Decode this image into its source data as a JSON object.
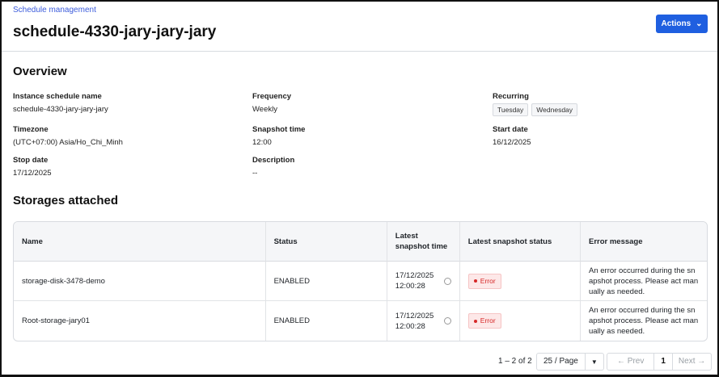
{
  "breadcrumb": "Schedule management",
  "title": "schedule-4330-jary-jary-jary",
  "actions_label": "Actions",
  "overview": {
    "heading": "Overview",
    "fields": [
      {
        "label": "Instance schedule name",
        "value": "schedule-4330-jary-jary-jary"
      },
      {
        "label": "Frequency",
        "value": "Weekly"
      },
      {
        "label": "Recurring",
        "tags": [
          "Tuesday",
          "Wednesday"
        ]
      },
      {
        "label": "Timezone",
        "value": "(UTC+07:00) Asia/Ho_Chi_Minh"
      },
      {
        "label": "Snapshot time",
        "value": "12:00"
      },
      {
        "label": "Start date",
        "value": "16/12/2025"
      },
      {
        "label": "Stop date",
        "value": "17/12/2025"
      },
      {
        "label": "Description",
        "value": "--"
      }
    ]
  },
  "storages": {
    "heading": "Storages attached",
    "columns": [
      "Name",
      "Status",
      "Latest snapshot time",
      "Latest snapshot status",
      "Error message"
    ],
    "rows": [
      {
        "name": "storage-disk-3478-demo",
        "status": "ENABLED",
        "time": "17/12/2025 12:00:28",
        "snap_status": "Error",
        "error": "An error occurred during the snapshot process. Please act manually as needed."
      },
      {
        "name": "Root-storage-jary01",
        "status": "ENABLED",
        "time": "17/12/2025 12:00:28",
        "snap_status": "Error",
        "error": "An error occurred during the snapshot process. Please act manually as needed."
      }
    ]
  },
  "pagination": {
    "range": "1 – 2 of 2",
    "page_size": "25 / Page",
    "prev": "← Prev",
    "page": "1",
    "next": "Next →"
  },
  "colors": {
    "accent": "#1f5fe0",
    "error": "#d62828"
  }
}
